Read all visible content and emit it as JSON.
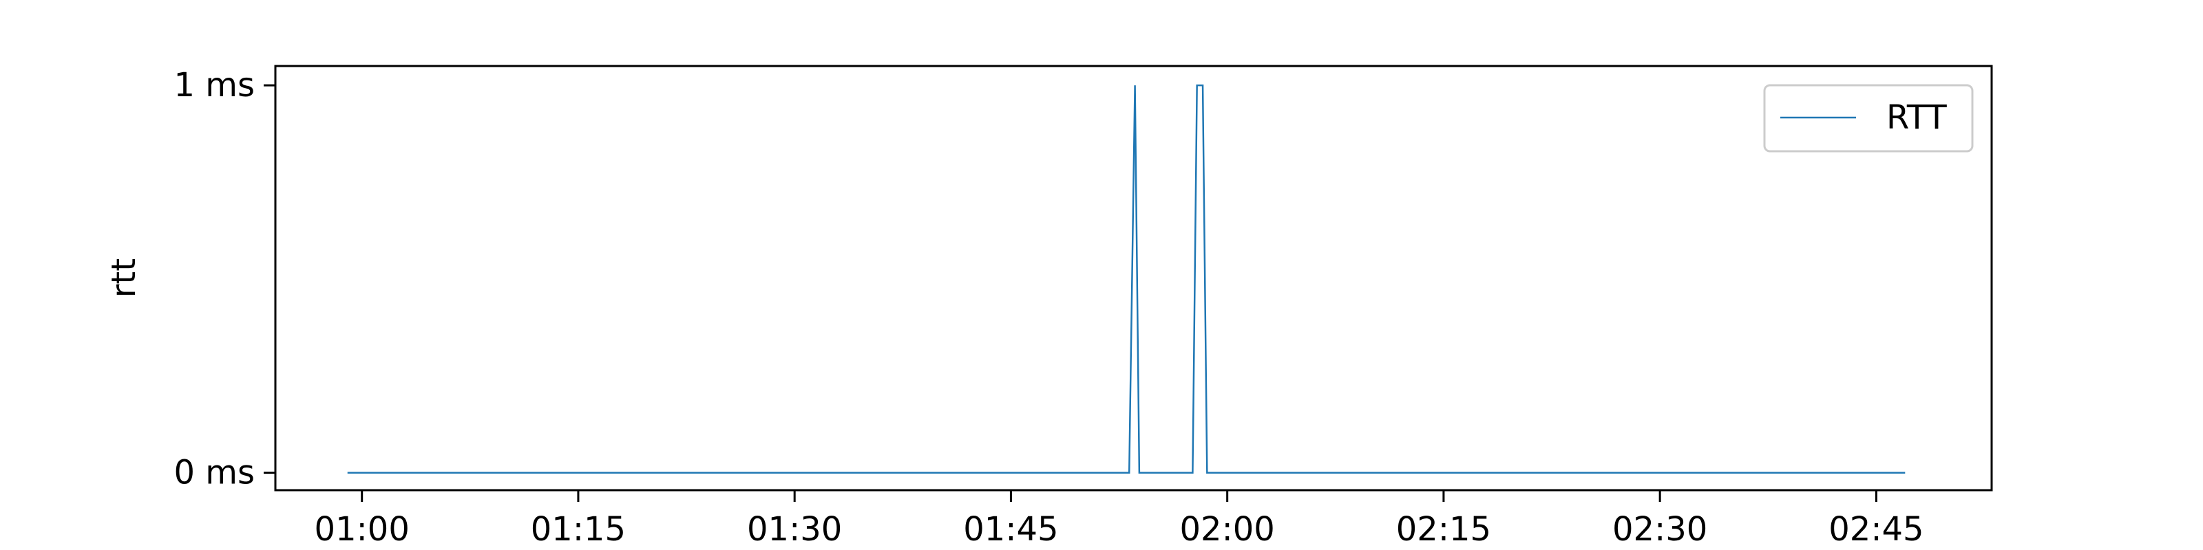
{
  "chart_data": {
    "type": "line",
    "title": "",
    "xlabel": "",
    "ylabel": "rtt",
    "x_ticks": [
      "01:00",
      "01:15",
      "01:30",
      "01:45",
      "02:00",
      "02:15",
      "02:30",
      "02:45"
    ],
    "y_ticks": [
      "0 ms",
      "1 ms"
    ],
    "xlim": [
      "00:54",
      "02:53"
    ],
    "ylim": [
      -0.045,
      1.05
    ],
    "grid": false,
    "legend": {
      "position": "top-right",
      "entries": [
        "RTT"
      ]
    },
    "series": [
      {
        "name": "RTT",
        "color": "#1f77b4",
        "x": [
          "00:59",
          "01:53.2",
          "01:53.6",
          "01:53.9",
          "01:57.6",
          "01:57.9",
          "01:58.3",
          "01:58.6",
          "02:47"
        ],
        "y": [
          0,
          0,
          1,
          0,
          0,
          1,
          1,
          0,
          0
        ]
      }
    ]
  }
}
